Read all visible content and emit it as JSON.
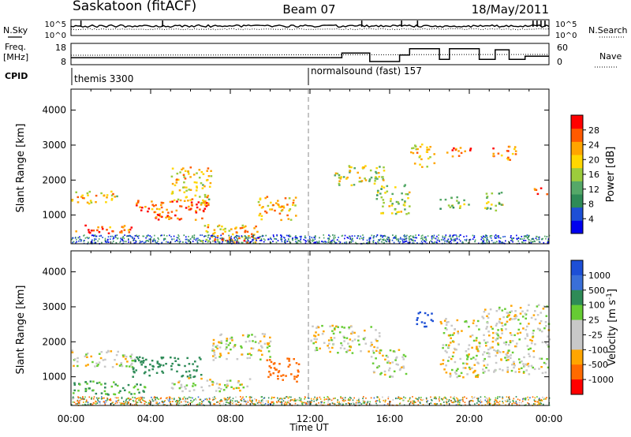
{
  "header": {
    "station": "Saskatoon (fitACF)",
    "beam": "Beam 07",
    "date": "18/May/2011"
  },
  "summary_panels": {
    "nsky_label": "N.Sky",
    "nsearch_label": "N.Search",
    "freq_label_line1": "Freq.",
    "freq_label_line2": "[MHz]",
    "nave_label": "Nave",
    "cpid_label": "CPID",
    "counts_axis_left": [
      "10^5",
      "10^0"
    ],
    "counts_axis_right": [
      "10^5",
      "10^0"
    ],
    "freq_axis_left": [
      "18",
      "8"
    ],
    "nave_axis_right": [
      "60",
      "0"
    ],
    "cpid_modes": [
      {
        "name": "themis 3300",
        "start_hour": 0
      },
      {
        "name": "normalsound (fast) 157",
        "start_hour": 12
      }
    ]
  },
  "power_colorbar": {
    "label": "Power [dB]",
    "ticks": [
      "28",
      "24",
      "20",
      "16",
      "12",
      "8",
      "4"
    ],
    "colors": [
      "#0000ee",
      "#1d4fd6",
      "#2e8b57",
      "#55a868",
      "#9ccc3c",
      "#ffd700",
      "#ffa500",
      "#ff5a00",
      "#ff0000"
    ]
  },
  "velocity_colorbar": {
    "label": "Velocity [m s^-1]",
    "ticks": [
      "1000",
      "500",
      "100",
      "25",
      "-25",
      "-100",
      "-500",
      "-1000"
    ],
    "colors": [
      "#1d4fd6",
      "#3a6fd8",
      "#2e8b57",
      "#66cc33",
      "#c8c8c8",
      "#c8c8c8",
      "#ffa500",
      "#ff6a00",
      "#ff0000"
    ]
  },
  "time_axis": {
    "label": "Time UT",
    "ticks": [
      "00:00",
      "04:00",
      "08:00",
      "12:00",
      "16:00",
      "20:00",
      "00:00"
    ]
  },
  "range_axis": {
    "label": "Slant Range [km]",
    "ticks": [
      "1000",
      "2000",
      "3000",
      "4000"
    ]
  },
  "chart_data": [
    {
      "type": "heatmap",
      "title": "",
      "xlabel": "Time UT",
      "ylabel": "Slant Range [km]",
      "parameter": "Power [dB]",
      "xlim": [
        0,
        24
      ],
      "ylim": [
        180,
        4600
      ],
      "clim": [
        0,
        32
      ],
      "patches": [
        {
          "t0": 0.2,
          "t1": 3.0,
          "r0": 480,
          "r1": 760,
          "value": 27
        },
        {
          "t0": 0.0,
          "t1": 2.5,
          "r0": 1350,
          "r1": 1700,
          "value": 20
        },
        {
          "t0": 2.8,
          "t1": 4.6,
          "r0": 1100,
          "r1": 1450,
          "value": 24
        },
        {
          "t0": 4.2,
          "t1": 6.8,
          "r0": 880,
          "r1": 1500,
          "value": 27
        },
        {
          "t0": 5.0,
          "t1": 7.0,
          "r0": 1300,
          "r1": 2400,
          "value": 20
        },
        {
          "t0": 6.5,
          "t1": 9.5,
          "r0": 280,
          "r1": 780,
          "value": 22
        },
        {
          "t0": 7.5,
          "t1": 9.5,
          "r0": 200,
          "r1": 420,
          "value": 26
        },
        {
          "t0": 9.3,
          "t1": 11.3,
          "r0": 880,
          "r1": 1550,
          "value": 22
        },
        {
          "t0": 13.2,
          "t1": 15.8,
          "r0": 1850,
          "r1": 2450,
          "value": 18
        },
        {
          "t0": 15.3,
          "t1": 17.0,
          "r0": 1050,
          "r1": 1900,
          "value": 16
        },
        {
          "t0": 17.0,
          "t1": 18.2,
          "r0": 2400,
          "r1": 3050,
          "value": 20
        },
        {
          "t0": 18.7,
          "t1": 20.3,
          "r0": 2700,
          "r1": 2950,
          "value": 26
        },
        {
          "t0": 18.5,
          "t1": 20.0,
          "r0": 1200,
          "r1": 1550,
          "value": 14
        },
        {
          "t0": 20.7,
          "t1": 21.7,
          "r0": 1150,
          "r1": 1700,
          "value": 16
        },
        {
          "t0": 21.0,
          "t1": 22.3,
          "r0": 2600,
          "r1": 3000,
          "value": 24
        },
        {
          "t0": 23.2,
          "t1": 24.0,
          "r0": 1600,
          "r1": 1800,
          "value": 26
        }
      ]
    },
    {
      "type": "heatmap",
      "title": "",
      "xlabel": "Time UT",
      "ylabel": "Slant Range [km]",
      "parameter": "Velocity [m s^-1]",
      "xlim": [
        0,
        24
      ],
      "ylim": [
        180,
        4600
      ],
      "clim": [
        -1000,
        1000
      ],
      "patches": [
        {
          "t0": 0.0,
          "t1": 3.8,
          "r0": 500,
          "r1": 900,
          "value": 150
        },
        {
          "t0": 0.0,
          "t1": 3.2,
          "r0": 1300,
          "r1": 1800,
          "value": 0
        },
        {
          "t0": 3.0,
          "t1": 6.5,
          "r0": 1000,
          "r1": 1600,
          "value": 300
        },
        {
          "t0": 5.0,
          "t1": 9.0,
          "r0": 600,
          "r1": 1000,
          "value": 0
        },
        {
          "t0": 7.0,
          "t1": 10.0,
          "r0": 1500,
          "r1": 2300,
          "value": 0
        },
        {
          "t0": 9.8,
          "t1": 11.4,
          "r0": 850,
          "r1": 1550,
          "value": -300
        },
        {
          "t0": 12.0,
          "t1": 15.5,
          "r0": 1700,
          "r1": 2500,
          "value": 0
        },
        {
          "t0": 15.0,
          "t1": 16.8,
          "r0": 1000,
          "r1": 1800,
          "value": 0
        },
        {
          "t0": 17.3,
          "t1": 18.2,
          "r0": 2450,
          "r1": 2900,
          "value": 800
        },
        {
          "t0": 18.5,
          "t1": 20.5,
          "r0": 1000,
          "r1": 2700,
          "value": 0
        },
        {
          "t0": 20.6,
          "t1": 24.0,
          "r0": 1100,
          "r1": 3100,
          "value": 0
        }
      ]
    },
    {
      "type": "line",
      "title": "",
      "xlabel": "Time UT",
      "ylabel": "Freq. [MHz]",
      "ylim": [
        8,
        18
      ],
      "series": [
        {
          "x": [
            0,
            1,
            2,
            3,
            4,
            5,
            6,
            7,
            8,
            9,
            10,
            11,
            12,
            13
          ],
          "values": [
            11.3,
            11.3,
            11.3,
            11.3,
            11.3,
            11.3,
            11.3,
            11.3,
            11.3,
            11.3,
            11.3,
            11.3,
            11.3,
            11.3
          ]
        },
        {
          "x": [
            13.0,
            13.6,
            13.6,
            15.0,
            15.0,
            16.5,
            16.5,
            17.0,
            17.0,
            18.5,
            18.5,
            19.0,
            19.0,
            20.5,
            20.5,
            21.3,
            21.3,
            22.0,
            22.0,
            22.8,
            22.8,
            24.0
          ],
          "values": [
            11.3,
            11.3,
            13.5,
            13.5,
            9.5,
            9.5,
            12.5,
            12.5,
            15.5,
            15.5,
            10.5,
            10.5,
            15.5,
            15.5,
            10.5,
            10.5,
            15.0,
            15.0,
            10.5,
            10.5,
            12.0,
            12.0
          ]
        }
      ]
    }
  ]
}
